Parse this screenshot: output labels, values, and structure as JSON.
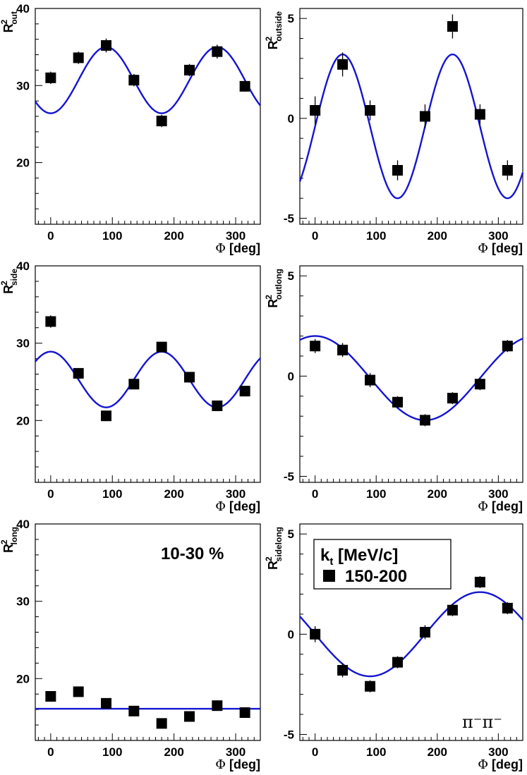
{
  "legend": {
    "title": "k",
    "title_sub": "t",
    "title_rest": " [MeV/c]",
    "entry": "150-200"
  },
  "centrality": "10-30 %",
  "particle": "π⁻π⁻",
  "chart_data": [
    {
      "type": "scatter",
      "ylabel_main": "R",
      "ylabel_sup": "2",
      "ylabel_sub": "out",
      "xlabel_phi": "Φ",
      "xlabel_unit": "[deg]",
      "xlim": [
        -25,
        340
      ],
      "ylim": [
        12,
        40
      ],
      "xticks": [
        "0",
        "100",
        "200",
        "300"
      ],
      "yticks": [
        "20",
        "30",
        "40"
      ],
      "x": [
        0,
        45,
        90,
        135,
        180,
        225,
        270,
        315
      ],
      "y": [
        31.0,
        33.6,
        35.2,
        30.7,
        25.4,
        32.0,
        34.4,
        29.9
      ],
      "err": [
        0.8,
        0.8,
        0.9,
        0.8,
        0.8,
        0.8,
        0.9,
        0.7
      ],
      "fit": {
        "type": "cos",
        "c0": 30.7,
        "amp": -4.3,
        "harm": 2,
        "phase": 0
      }
    },
    {
      "type": "scatter",
      "ylabel_main": "R",
      "ylabel_sup": "2",
      "ylabel_sub": "outside",
      "xlabel_phi": "Φ",
      "xlabel_unit": "[deg]",
      "xlim": [
        -25,
        340
      ],
      "ylim": [
        -5.3,
        5.5
      ],
      "xticks": [
        "0",
        "100",
        "200",
        "300"
      ],
      "yticks": [
        "-5",
        "0",
        "5"
      ],
      "x": [
        0,
        45,
        90,
        135,
        180,
        225,
        270,
        315
      ],
      "y": [
        0.4,
        2.7,
        0.4,
        -2.6,
        0.1,
        4.6,
        0.2,
        -2.6
      ],
      "err": [
        0.7,
        0.6,
        0.5,
        0.5,
        0.6,
        0.6,
        0.5,
        0.5
      ],
      "fit": {
        "type": "sin",
        "c0": -0.4,
        "amp": 3.6,
        "harm": 2,
        "phase": 0
      }
    },
    {
      "type": "scatter",
      "ylabel_main": "R",
      "ylabel_sup": "2",
      "ylabel_sub": "side",
      "xlabel_phi": "Φ",
      "xlabel_unit": "[deg]",
      "xlim": [
        -25,
        340
      ],
      "ylim": [
        12,
        40
      ],
      "xticks": [
        "0",
        "100",
        "200",
        "300"
      ],
      "yticks": [
        "20",
        "30",
        "40"
      ],
      "x": [
        0,
        45,
        90,
        135,
        180,
        225,
        270,
        315
      ],
      "y": [
        32.8,
        26.1,
        20.6,
        24.7,
        29.5,
        25.6,
        21.9,
        23.8
      ],
      "err": [
        0.8,
        0.6,
        0.5,
        0.5,
        0.6,
        0.5,
        0.5,
        0.5
      ],
      "fit": {
        "type": "cos",
        "c0": 25.3,
        "amp": 3.6,
        "harm": 2,
        "phase": 0
      }
    },
    {
      "type": "scatter",
      "ylabel_main": "R",
      "ylabel_sup": "2",
      "ylabel_sub": "outlong",
      "xlabel_phi": "Φ",
      "xlabel_unit": "[deg]",
      "xlim": [
        -25,
        340
      ],
      "ylim": [
        -5.3,
        5.5
      ],
      "xticks": [
        "0",
        "100",
        "200",
        "300"
      ],
      "yticks": [
        "-5",
        "0",
        "5"
      ],
      "x": [
        0,
        45,
        90,
        135,
        180,
        225,
        270,
        315
      ],
      "y": [
        1.5,
        1.3,
        -0.2,
        -1.3,
        -2.2,
        -1.1,
        -0.4,
        1.5
      ],
      "err": [
        0.35,
        0.35,
        0.35,
        0.3,
        0.3,
        0.3,
        0.3,
        0.3
      ],
      "fit": {
        "type": "cos",
        "c0": -0.1,
        "amp": 2.1,
        "harm": 1,
        "phase": 0
      }
    },
    {
      "type": "scatter",
      "ylabel_main": "R",
      "ylabel_sup": "2",
      "ylabel_sub": "long",
      "xlabel_phi": "Φ",
      "xlabel_unit": "[deg]",
      "xlim": [
        -25,
        340
      ],
      "ylim": [
        12,
        40
      ],
      "xticks": [
        "0",
        "100",
        "200",
        "300"
      ],
      "yticks": [
        "20",
        "30",
        "40"
      ],
      "x": [
        0,
        45,
        90,
        135,
        180,
        225,
        270,
        315
      ],
      "y": [
        17.7,
        18.3,
        16.8,
        15.8,
        14.2,
        15.1,
        16.5,
        15.6
      ],
      "err": [
        0.3,
        0.3,
        0.3,
        0.3,
        0.3,
        0.3,
        0.3,
        0.3
      ],
      "fit": {
        "type": "const",
        "c0": 16.1,
        "amp": 0,
        "harm": 0,
        "phase": 0
      }
    },
    {
      "type": "scatter",
      "ylabel_main": "R",
      "ylabel_sup": "2",
      "ylabel_sub": "sidelong",
      "xlabel_phi": "Φ",
      "xlabel_unit": "[deg]",
      "xlim": [
        -25,
        340
      ],
      "ylim": [
        -5.3,
        5.5
      ],
      "xticks": [
        "0",
        "100",
        "200",
        "300"
      ],
      "yticks": [
        "-5",
        "0",
        "5"
      ],
      "x": [
        0,
        45,
        90,
        135,
        180,
        225,
        270,
        315
      ],
      "y": [
        0.0,
        -1.8,
        -2.6,
        -1.4,
        0.1,
        1.2,
        2.6,
        1.3
      ],
      "err": [
        0.4,
        0.35,
        0.3,
        0.3,
        0.35,
        0.3,
        0.3,
        0.3
      ],
      "fit": {
        "type": "sin",
        "c0": 0.0,
        "amp": -2.1,
        "harm": 1,
        "phase": 0
      }
    }
  ]
}
